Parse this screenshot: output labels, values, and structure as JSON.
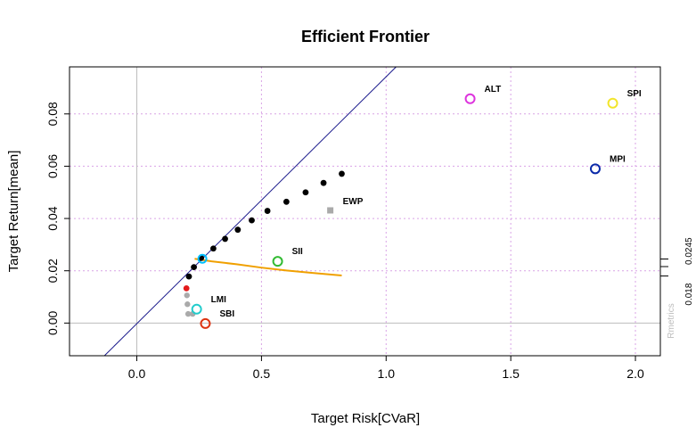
{
  "chart_data": {
    "type": "scatter",
    "title": "Efficient Frontier",
    "xlabel": "Target Risk[CVaR]",
    "ylabel": "Target Return[mean]",
    "xlim": [
      -0.27,
      2.1
    ],
    "ylim": [
      -0.0125,
      0.098
    ],
    "x_ticks": [
      0.0,
      0.5,
      1.0,
      1.5,
      2.0
    ],
    "x_tick_labels": [
      "0.0",
      "0.5",
      "1.0",
      "1.5",
      "2.0"
    ],
    "y_ticks": [
      0.0,
      0.02,
      0.04,
      0.06,
      0.08
    ],
    "y_tick_labels": [
      "0.00",
      "0.02",
      "0.04",
      "0.06",
      "0.08"
    ],
    "grid": true,
    "grid_x": [
      0.5,
      1.0,
      1.5,
      2.0
    ],
    "grid_y": [
      0.02,
      0.04,
      0.06,
      0.08
    ],
    "zero_lines": {
      "x": 0.0,
      "y": 0.0
    },
    "colors": {
      "frontier": "#000000",
      "inefficient": "#aaaaaa",
      "min_variance": "#e41a1c",
      "tangency_line": "#1a1a8c",
      "tangency_point": "#00bfff",
      "sharpe_curve": "#f0a000",
      "ewp": "#aaaaaa",
      "grid": "#d9a3e6",
      "zero_line": "#bdbdbd"
    },
    "efficient_frontier": {
      "x": [
        0.209,
        0.229,
        0.258,
        0.307,
        0.354,
        0.405,
        0.461,
        0.524,
        0.6,
        0.677,
        0.749,
        0.822
      ],
      "y": [
        0.0178,
        0.0214,
        0.0249,
        0.0285,
        0.0322,
        0.0357,
        0.0393,
        0.0429,
        0.0464,
        0.05,
        0.0536,
        0.0571
      ]
    },
    "inefficient_points": {
      "x": [
        0.201,
        0.203,
        0.206,
        0.224
      ],
      "y": [
        0.0106,
        0.0072,
        0.0035,
        0.0035
      ]
    },
    "min_variance_point": {
      "x": 0.199,
      "y": 0.0133
    },
    "tangency_line": {
      "x": [
        -0.13,
        1.04
      ],
      "y": [
        -0.0125,
        0.098
      ]
    },
    "tangency_point": {
      "x": 0.263,
      "y": 0.0246
    },
    "sharpe_curve": {
      "x": [
        0.232,
        0.3,
        0.4,
        0.5,
        0.6,
        0.7,
        0.822
      ],
      "y": [
        0.0246,
        0.0236,
        0.0225,
        0.0212,
        0.0201,
        0.0192,
        0.0182
      ]
    },
    "assets": [
      {
        "label": "ALT",
        "x": 1.337,
        "y": 0.0858,
        "color": "#dd33dd"
      },
      {
        "label": "SPI",
        "x": 1.909,
        "y": 0.0841,
        "color": "#f2e52a"
      },
      {
        "label": "MPI",
        "x": 1.839,
        "y": 0.059,
        "color": "#0a2aa8"
      },
      {
        "label": "SII",
        "x": 0.565,
        "y": 0.0236,
        "color": "#33bb33"
      },
      {
        "label": "LMI",
        "x": 0.24,
        "y": 0.0053,
        "color": "#22cccc"
      },
      {
        "label": "SBI",
        "x": 0.275,
        "y": -0.0002,
        "color": "#dd3311"
      }
    ],
    "ewp": {
      "label": "EWP",
      "x": 0.776,
      "y": 0.0431
    },
    "right_axis": {
      "ticks": [
        0.0245,
        0.0216,
        0.018
      ],
      "labels": [
        "0.0245",
        "0.018"
      ]
    },
    "credit": "Rmetrics"
  }
}
